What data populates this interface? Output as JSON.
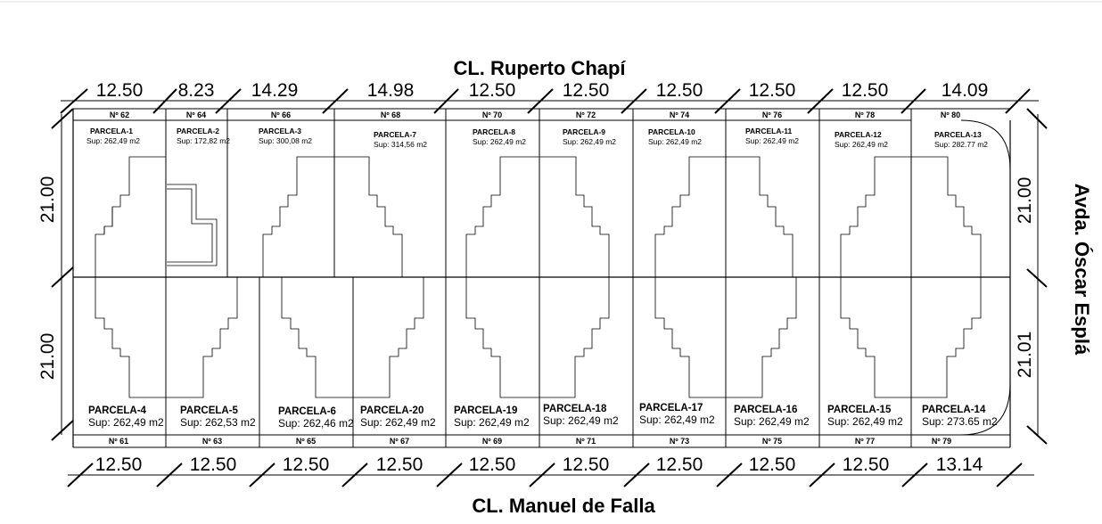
{
  "streets": {
    "top": "CL. Ruperto Chapí",
    "bottom": "CL. Manuel de Falla",
    "right": "Avda. Óscar Esplá"
  },
  "dims_top": [
    "12.50",
    "8.23",
    "14.29",
    "14.98",
    "12.50",
    "12.50",
    "12.50",
    "12.50",
    "12.50",
    "14.09"
  ],
  "dims_bottom": [
    "12.50",
    "12.50",
    "12.50",
    "12.50",
    "12.50",
    "12.50",
    "12.50",
    "12.50",
    "12.50",
    "13.14"
  ],
  "dims_left": [
    "21.00",
    "21.00"
  ],
  "dims_right": [
    "21.00",
    "21.01"
  ],
  "numbers_top": [
    "Nº 62",
    "Nº 64",
    "Nº 66",
    "Nº 68",
    "Nº 70",
    "Nº 72",
    "Nº 74",
    "Nº 76",
    "Nº 78",
    "Nº 80"
  ],
  "numbers_bottom": [
    "Nº 61",
    "Nº 63",
    "Nº 65",
    "Nº 67",
    "Nº 69",
    "Nº 71",
    "Nº 73",
    "Nº 75",
    "Nº 77",
    "Nº 79"
  ],
  "parcels_top": [
    {
      "name": "PARCELA-1",
      "area": "Sup: 262,49 m2"
    },
    {
      "name": "PARCELA-2",
      "area": "Sup: 172,82 m2"
    },
    {
      "name": "PARCELA-3",
      "area": "Sup: 300,08 m2"
    },
    {
      "name": "PARCELA-7",
      "area": "Sup: 314,56 m2"
    },
    {
      "name": "PARCELA-8",
      "area": "Sup: 262,49 m2"
    },
    {
      "name": "PARCELA-9",
      "area": "Sup: 262,49 m2"
    },
    {
      "name": "PARCELA-10",
      "area": "Sup: 262,49 m2"
    },
    {
      "name": "PARCELA-11",
      "area": "Sup: 262,49 m2"
    },
    {
      "name": "PARCELA-12",
      "area": "Sup: 262,49 m2"
    },
    {
      "name": "PARCELA-13",
      "area": "Sup: 282.77 m2"
    }
  ],
  "parcels_bottom": [
    {
      "name": "PARCELA-4",
      "area": "Sup: 262,49 m2"
    },
    {
      "name": "PARCELA-5",
      "area": "Sup: 262,53 m2"
    },
    {
      "name": "PARCELA-6",
      "area": "Sup: 262,46 m2"
    },
    {
      "name": "PARCELA-20",
      "area": "Sup: 262,49 m2"
    },
    {
      "name": "PARCELA-19",
      "area": "Sup: 262,49 m2"
    },
    {
      "name": "PARCELA-18",
      "area": "Sup: 262,49 m2"
    },
    {
      "name": "PARCELA-17",
      "area": "Sup: 262,49 m2"
    },
    {
      "name": "PARCELA-16",
      "area": "Sup: 262,49 m2"
    },
    {
      "name": "PARCELA-15",
      "area": "Sup: 262,49 m2"
    },
    {
      "name": "PARCELA-14",
      "area": "Sup: 273.65 m2"
    }
  ]
}
